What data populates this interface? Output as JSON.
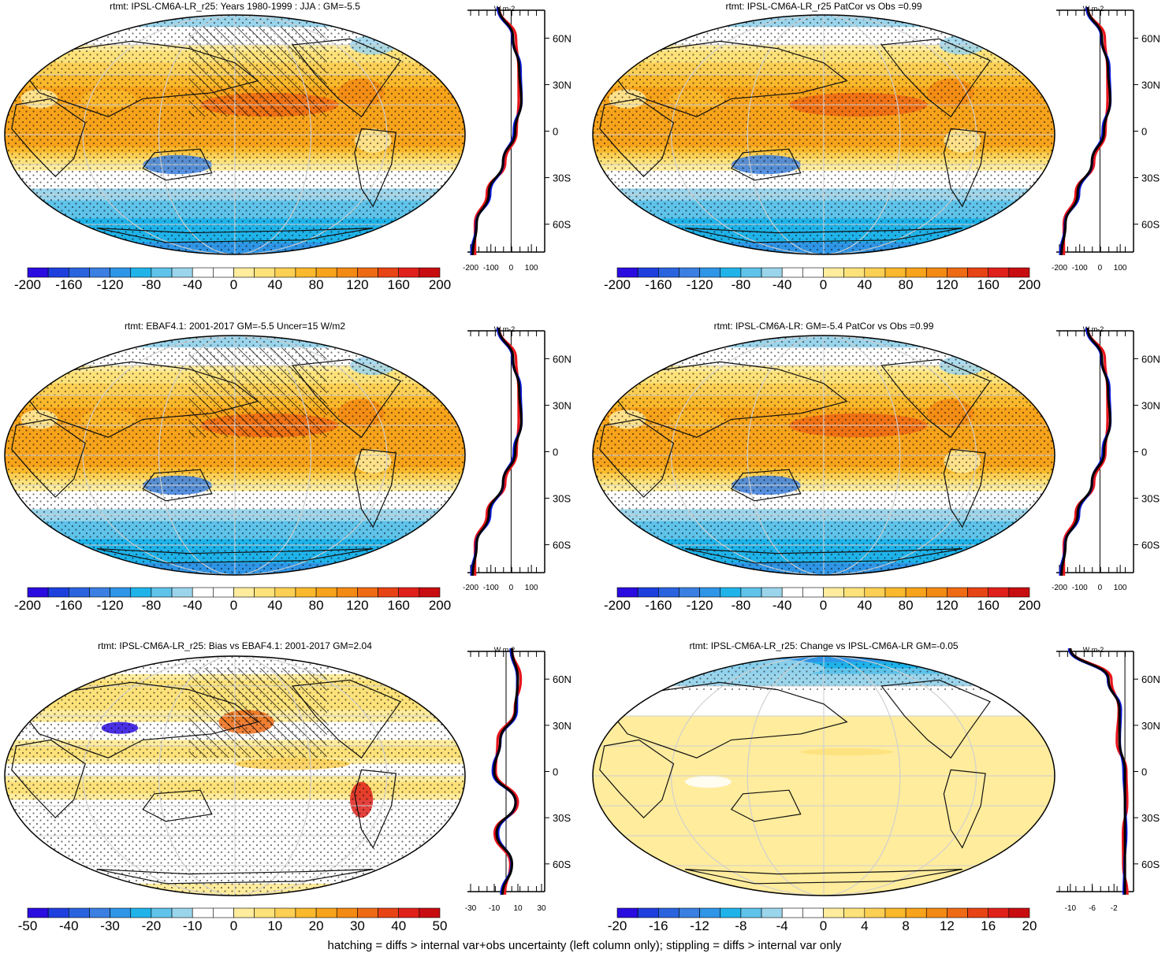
{
  "footer": "hatching = diffs > internal var+obs uncertainty (left column only); stippling = diffs > internal var only",
  "palette": [
    "#2a0ce0",
    "#1d3fde",
    "#2a63de",
    "#3a7fe1",
    "#2f95e6",
    "#1fb3ea",
    "#5fc3ea",
    "#9bd5ec",
    "#ffffff",
    "#ffffff",
    "#ffec9d",
    "#fde27a",
    "#fccf55",
    "#fab92c",
    "#f7a31b",
    "#f38a14",
    "#ee6a14",
    "#e84314",
    "#e0201a",
    "#c80d10"
  ],
  "line_colors": {
    "series_a": "#000000",
    "series_b": "#0a1adf",
    "series_c": "#e8141c"
  },
  "lat_ticks": [
    "60N",
    "30N",
    "0",
    "30S",
    "60S"
  ],
  "zonal_unit": "W m-2",
  "panels": [
    {
      "title": "rtmt: IPSL-CM6A-LR_r25: Years 1980-1999 : JJA : GM=-5.5",
      "colorbar": [
        "-200",
        "-160",
        "-120",
        "-80",
        "-40",
        "0",
        "40",
        "80",
        "120",
        "160",
        "200"
      ],
      "zonal_ticks": [
        "-200",
        "-100",
        "0",
        "100"
      ]
    },
    {
      "title": "rtmt: IPSL-CM6A-LR_r25 PatCor vs Obs =0.99",
      "colorbar": [
        "-200",
        "-160",
        "-120",
        "-80",
        "-40",
        "0",
        "40",
        "80",
        "120",
        "160",
        "200"
      ],
      "zonal_ticks": [
        "-200",
        "-100",
        "0",
        "100"
      ]
    },
    {
      "title": "rtmt: EBAF4.1: 2001-2017 GM=-5.5 Uncer=15 W/m2",
      "colorbar": [
        "-200",
        "-160",
        "-120",
        "-80",
        "-40",
        "0",
        "40",
        "80",
        "120",
        "160",
        "200"
      ],
      "zonal_ticks": [
        "-200",
        "-100",
        "0",
        "100"
      ]
    },
    {
      "title": "rtmt: IPSL-CM6A-LR: GM=-5.4 PatCor vs Obs =0.99",
      "colorbar": [
        "-200",
        "-160",
        "-120",
        "-80",
        "-40",
        "0",
        "40",
        "80",
        "120",
        "160",
        "200"
      ],
      "zonal_ticks": [
        "-200",
        "-100",
        "0",
        "100"
      ]
    },
    {
      "title": "rtmt: IPSL-CM6A-LR_r25: Bias vs EBAF4.1: 2001-2017 GM=2.04",
      "colorbar": [
        "-50",
        "-40",
        "-30",
        "-20",
        "-10",
        "0",
        "10",
        "20",
        "30",
        "40",
        "50"
      ],
      "zonal_ticks": [
        "-30",
        "-10",
        "10",
        "30"
      ]
    },
    {
      "title": "rtmt: IPSL-CM6A-LR_r25: Change vs IPSL-CM6A-LR GM=-0.05",
      "colorbar": [
        "-20",
        "-16",
        "-12",
        "-8",
        "-4",
        "0",
        "4",
        "8",
        "12",
        "16",
        "20"
      ],
      "zonal_ticks": [
        "-10",
        "-6",
        "-2"
      ]
    }
  ],
  "chart_data": [
    {
      "type": "heatmap",
      "panel": "top-left",
      "title": "rtmt: IPSL-CM6A-LR_r25: Years 1980-1999 : JJA : GM=-5.5",
      "levels": [
        -200,
        -160,
        -120,
        -80,
        -40,
        0,
        40,
        80,
        120,
        160,
        200
      ],
      "lat": [
        80,
        60,
        40,
        20,
        0,
        -20,
        -40,
        -60,
        -80
      ],
      "zonal_mean": [
        -60,
        10,
        40,
        50,
        20,
        -40,
        -110,
        -170,
        -190
      ]
    },
    {
      "type": "heatmap",
      "panel": "top-right",
      "title": "rtmt: IPSL-CM6A-LR_r25 PatCor vs Obs =0.99",
      "levels": [
        -200,
        -160,
        -120,
        -80,
        -40,
        0,
        40,
        80,
        120,
        160,
        200
      ],
      "lat": [
        80,
        60,
        40,
        20,
        0,
        -20,
        -40,
        -60,
        -80
      ],
      "zonal_mean": [
        -60,
        10,
        40,
        50,
        20,
        -40,
        -110,
        -170,
        -190
      ]
    },
    {
      "type": "heatmap",
      "panel": "middle-left",
      "title": "rtmt: EBAF4.1: 2001-2017 GM=-5.5 Uncer=15 W/m2",
      "levels": [
        -200,
        -160,
        -120,
        -80,
        -40,
        0,
        40,
        80,
        120,
        160,
        200
      ],
      "lat": [
        80,
        60,
        40,
        20,
        0,
        -20,
        -40,
        -60,
        -80
      ],
      "zonal_mean": [
        -60,
        10,
        40,
        50,
        20,
        -40,
        -110,
        -170,
        -190
      ]
    },
    {
      "type": "heatmap",
      "panel": "middle-right",
      "title": "rtmt: IPSL-CM6A-LR: GM=-5.4 PatCor vs Obs =0.99",
      "levels": [
        -200,
        -160,
        -120,
        -80,
        -40,
        0,
        40,
        80,
        120,
        160,
        200
      ],
      "lat": [
        80,
        60,
        40,
        20,
        0,
        -20,
        -40,
        -60,
        -80
      ],
      "zonal_mean": [
        -60,
        10,
        40,
        50,
        20,
        -40,
        -110,
        -170,
        -190
      ]
    },
    {
      "type": "heatmap",
      "panel": "bottom-left",
      "title": "rtmt: IPSL-CM6A-LR_r25: Bias vs EBAF4.1: 2001-2017 GM=2.04",
      "levels": [
        -50,
        -40,
        -30,
        -20,
        -10,
        0,
        10,
        20,
        30,
        40,
        50
      ],
      "lat": [
        80,
        60,
        40,
        20,
        0,
        -20,
        -40,
        -60,
        -80
      ],
      "zonal_mean": [
        5,
        10,
        8,
        -5,
        -10,
        8,
        -8,
        5,
        -3
      ]
    },
    {
      "type": "heatmap",
      "panel": "bottom-right",
      "title": "rtmt: IPSL-CM6A-LR_r25: Change vs IPSL-CM6A-LR GM=-0.05",
      "levels": [
        -20,
        -16,
        -12,
        -8,
        -4,
        0,
        4,
        8,
        12,
        16,
        20
      ],
      "lat": [
        80,
        60,
        40,
        20,
        0,
        -20,
        -40,
        -60,
        -80
      ],
      "zonal_mean": [
        -10,
        -3,
        -1,
        -1,
        0,
        0,
        0,
        0,
        0
      ]
    }
  ]
}
